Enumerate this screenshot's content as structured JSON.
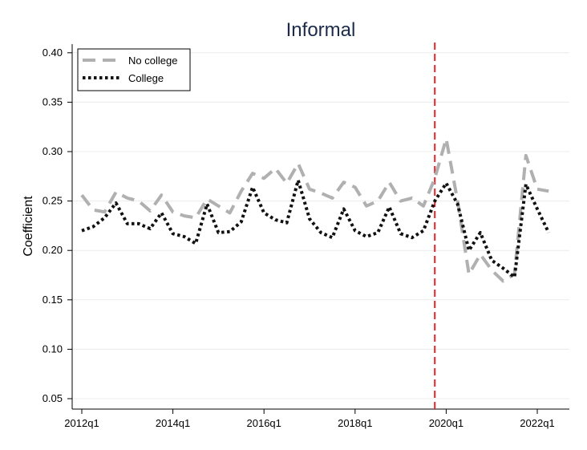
{
  "chart_data": {
    "type": "line",
    "title": "Informal",
    "xlabel": "",
    "ylabel": "Coefficient",
    "x_ticks": [
      "2012q1",
      "2014q1",
      "2016q1",
      "2018q1",
      "2020q1",
      "2022q1"
    ],
    "y_ticks": [
      "0.05",
      "0.10",
      "0.15",
      "0.20",
      "0.25",
      "0.30",
      "0.35",
      "0.40"
    ],
    "ylim": [
      0.05,
      0.41
    ],
    "xlim": [
      "2012q1",
      "2022q4"
    ],
    "grid": true,
    "legend_position": "top-left",
    "vertical_reference_line": {
      "x": "2019q4",
      "color": "#e8232a",
      "style": "dashed"
    },
    "x": [
      "2012q1",
      "2012q2",
      "2012q3",
      "2012q4",
      "2013q1",
      "2013q2",
      "2013q3",
      "2013q4",
      "2014q1",
      "2014q2",
      "2014q3",
      "2014q4",
      "2015q1",
      "2015q2",
      "2015q3",
      "2015q4",
      "2016q1",
      "2016q2",
      "2016q3",
      "2016q4",
      "2017q1",
      "2017q2",
      "2017q3",
      "2017q4",
      "2018q1",
      "2018q2",
      "2018q3",
      "2018q4",
      "2019q1",
      "2019q2",
      "2019q3",
      "2019q4",
      "2020q1",
      "2020q2",
      "2020q3",
      "2020q4",
      "2021q1",
      "2021q2",
      "2021q3",
      "2021q4",
      "2022q1",
      "2022q2"
    ],
    "series": [
      {
        "name": "No college",
        "color": "#b0b0b0",
        "style": "dash",
        "values": [
          0.256,
          0.241,
          0.239,
          0.259,
          0.253,
          0.25,
          0.24,
          0.256,
          0.239,
          0.235,
          0.233,
          0.252,
          0.245,
          0.238,
          0.26,
          0.278,
          0.273,
          0.283,
          0.268,
          0.288,
          0.262,
          0.258,
          0.253,
          0.269,
          0.264,
          0.245,
          0.25,
          0.269,
          0.25,
          0.253,
          0.245,
          0.273,
          0.313,
          0.25,
          0.176,
          0.196,
          0.18,
          0.169,
          0.176,
          0.296,
          0.262,
          0.26
        ]
      },
      {
        "name": "College",
        "color": "#111111",
        "style": "dot",
        "values": [
          0.22,
          0.224,
          0.233,
          0.248,
          0.227,
          0.227,
          0.222,
          0.238,
          0.217,
          0.214,
          0.207,
          0.247,
          0.218,
          0.219,
          0.229,
          0.264,
          0.238,
          0.231,
          0.228,
          0.271,
          0.232,
          0.218,
          0.213,
          0.242,
          0.22,
          0.214,
          0.218,
          0.244,
          0.217,
          0.213,
          0.22,
          0.25,
          0.268,
          0.247,
          0.2,
          0.218,
          0.19,
          0.182,
          0.173,
          0.267,
          0.242,
          0.218
        ]
      }
    ]
  }
}
